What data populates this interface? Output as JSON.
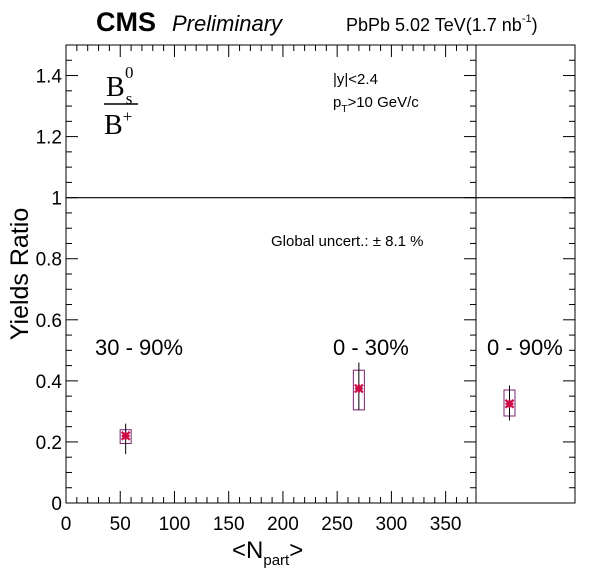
{
  "header": {
    "experiment": "CMS",
    "status": "Preliminary",
    "collision": "PbPb 5.02 TeV(1.7 nb",
    "lumi_exp": "-1",
    "collision_close": ")"
  },
  "annotations": {
    "ratio_num": "B",
    "ratio_num_sup": "0",
    "ratio_num_sub": "s",
    "ratio_den": "B",
    "ratio_den_sup": "+",
    "rapidity_cut": "|y|<2.4",
    "pt_prefix": "p",
    "pt_sub": "T",
    "pt_rest": ">10 GeV/c",
    "global_uncert": "Global uncert.: ± 8.1 %"
  },
  "chart_data": {
    "type": "scatter",
    "title": "",
    "ylabel": "Yields Ratio",
    "xlabel_main": "<N",
    "xlabel_sub": "part",
    "xlabel_close": ">",
    "xlim": [
      0,
      378
    ],
    "ylim": [
      0,
      1.5
    ],
    "x_ticks": [
      0,
      50,
      100,
      150,
      200,
      250,
      300,
      350
    ],
    "x_tick_labels": [
      "0",
      "50",
      "100",
      "150",
      "200",
      "250",
      "300",
      "350"
    ],
    "y_ticks": [
      0,
      0.2,
      0.4,
      0.6,
      0.8,
      1,
      1.2,
      1.4
    ],
    "y_tick_labels": [
      "0",
      "0.2",
      "0.4",
      "0.6",
      "0.8",
      "1",
      "1.2",
      "1.4"
    ],
    "reference_line": 1,
    "points": [
      {
        "label": "30 - 90%",
        "x": 55,
        "y": 0.22,
        "stat_low": 0.16,
        "stat_high": 0.26,
        "syst_low": 0.195,
        "syst_high": 0.24
      },
      {
        "label": "0 - 30%",
        "x": 270,
        "y": 0.375,
        "stat_low": 0.305,
        "stat_high": 0.46,
        "syst_low": 0.305,
        "syst_high": 0.435
      }
    ],
    "integrated": {
      "label": "0 - 90%",
      "y": 0.325,
      "stat_low": 0.27,
      "stat_high": 0.385,
      "syst_low": 0.285,
      "syst_high": 0.37
    },
    "marker_color": "#cc0a47",
    "syst_box_color": "#7a1f6e"
  }
}
